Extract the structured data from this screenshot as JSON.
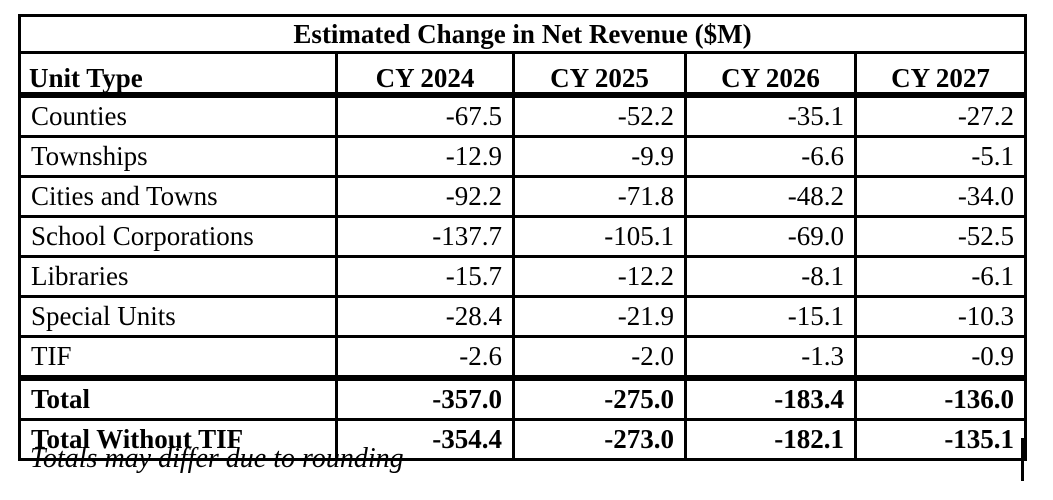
{
  "chart_data": {
    "type": "table",
    "title": "Estimated Change in Net Revenue ($M)",
    "columns": [
      "Unit Type",
      "CY 2024",
      "CY 2025",
      "CY 2026",
      "CY 2027"
    ],
    "rows": [
      {
        "label": "Counties",
        "values": [
          "-67.5",
          "-52.2",
          "-35.1",
          "-27.2"
        ],
        "bold": false,
        "thick_bottom": false
      },
      {
        "label": "Townships",
        "values": [
          "-12.9",
          "-9.9",
          "-6.6",
          "-5.1"
        ],
        "bold": false,
        "thick_bottom": false
      },
      {
        "label": "Cities and Towns",
        "values": [
          "-92.2",
          "-71.8",
          "-48.2",
          "-34.0"
        ],
        "bold": false,
        "thick_bottom": false
      },
      {
        "label": "School Corporations",
        "values": [
          "-137.7",
          "-105.1",
          "-69.0",
          "-52.5"
        ],
        "bold": false,
        "thick_bottom": false
      },
      {
        "label": "Libraries",
        "values": [
          "-15.7",
          "-12.2",
          "-8.1",
          "-6.1"
        ],
        "bold": false,
        "thick_bottom": false
      },
      {
        "label": "Special Units",
        "values": [
          "-28.4",
          "-21.9",
          "-15.1",
          "-10.3"
        ],
        "bold": false,
        "thick_bottom": false
      },
      {
        "label": "TIF",
        "values": [
          "-2.6",
          "-2.0",
          "-1.3",
          "-0.9"
        ],
        "bold": false,
        "thick_bottom": true
      },
      {
        "label": "Total",
        "values": [
          "-357.0",
          "-275.0",
          "-183.4",
          "-136.0"
        ],
        "bold": true,
        "thick_bottom": false
      },
      {
        "label": "Total Without TIF",
        "values": [
          "-354.4",
          "-273.0",
          "-182.1",
          "-135.1"
        ],
        "bold": true,
        "thick_bottom": false
      }
    ],
    "footnote": "Totals may differ due to rounding"
  },
  "colors": {
    "border": "#000000",
    "background": "#ffffff",
    "text": "#000000"
  }
}
